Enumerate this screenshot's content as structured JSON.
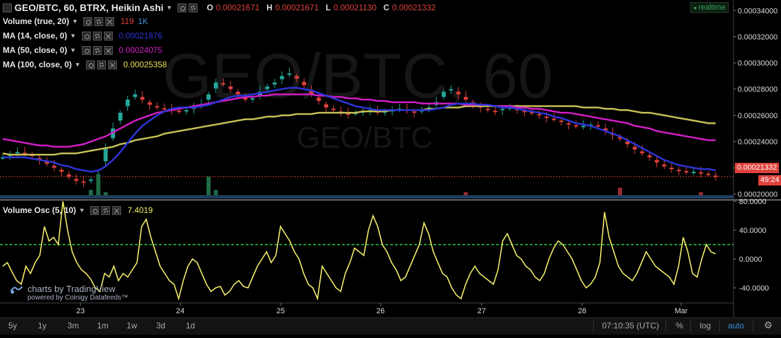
{
  "header": {
    "symbol_label": "GEO/BTC, 60, BTRX, Heikin Ashi",
    "ohlc": [
      {
        "k": "O",
        "v": "0.00021671"
      },
      {
        "k": "H",
        "v": "0.00021671"
      },
      {
        "k": "L",
        "v": "0.00021130"
      },
      {
        "k": "C",
        "v": "0.00021332"
      }
    ],
    "realtime_label": "realtime"
  },
  "watermark": {
    "big": "GEO/BTC, 60",
    "small": "GEO/BTC"
  },
  "indicators": [
    {
      "name": "Volume (true, 20)",
      "values": [
        {
          "text": "119",
          "color": "#e0413c"
        },
        {
          "text": "1K",
          "color": "#3a8fd6"
        }
      ]
    },
    {
      "name": "MA (14, close, 0)",
      "values": [
        {
          "text": "0.00021876",
          "color": "#2d35d8"
        }
      ]
    },
    {
      "name": "MA (50, close, 0)",
      "values": [
        {
          "text": "0.00024075",
          "color": "#d21dc6"
        }
      ]
    },
    {
      "name": "MA (100, close, 0)",
      "values": [
        {
          "text": "0.00025358",
          "color": "#e8e05a"
        }
      ]
    }
  ],
  "osc": {
    "name": "Volume Osc (5, 10)",
    "value": "7.4019",
    "value_color": "#f4ee6a"
  },
  "price_tags": {
    "last": "0.00021332",
    "countdown": "49:24"
  },
  "branding": {
    "main": "charts by TradingView",
    "sub": "powered by Coinigy Datafeeds™"
  },
  "toolbar": {
    "ranges": [
      "5y",
      "1y",
      "3m",
      "1m",
      "1w",
      "3d",
      "1d"
    ],
    "time": "07:10:35 (UTC)",
    "percent": "%",
    "log": "log",
    "auto": "auto"
  },
  "colors": {
    "up": "#26a69a",
    "down": "#e0413c",
    "ma14": "#2d35d8",
    "ma50": "#d21dc6",
    "ma100": "#c8c056",
    "osc_line": "#f4ee6a",
    "osc_zero": "#2ecc40",
    "price_line": "#e0413c"
  },
  "chart_data": [
    {
      "type": "candlestick",
      "title": "GEO/BTC, 60, BTRX, Heikin Ashi",
      "x_ticks": [
        "23",
        "24",
        "25",
        "26",
        "27",
        "28",
        "Mar"
      ],
      "y_ticks": [
        "0.00034000",
        "0.00032000",
        "0.00030000",
        "0.00028000",
        "0.00026000",
        "0.00024000",
        "0.00022000",
        "0.00020000"
      ],
      "ylim": [
        0.000196,
        0.000348
      ],
      "last_price": 0.00021332,
      "close_series": [
        0.000228,
        0.00023,
        0.000232,
        0.000231,
        0.000229,
        0.000226,
        0.000223,
        0.00022,
        0.000217,
        0.000213,
        0.00021,
        0.000209,
        0.000211,
        0.000215,
        0.000235,
        0.00025,
        0.000262,
        0.000272,
        0.000276,
        0.000272,
        0.000268,
        0.000266,
        0.000265,
        0.000264,
        0.000263,
        0.000264,
        0.000266,
        0.000268,
        0.000276,
        0.000285,
        0.000284,
        0.00028,
        0.000276,
        0.000272,
        0.000273,
        0.000278,
        0.000282,
        0.000285,
        0.00029,
        0.000292,
        0.000288,
        0.000283,
        0.000276,
        0.000271,
        0.000266,
        0.000264,
        0.000262,
        0.000261,
        0.000262,
        0.000263,
        0.000264,
        0.000262,
        0.000263,
        0.000264,
        0.000265,
        0.000264,
        0.000262,
        0.000264,
        0.000266,
        0.00027,
        0.000278,
        0.00028,
        0.000276,
        0.000272,
        0.000268,
        0.000266,
        0.000264,
        0.000263,
        0.000265,
        0.000266,
        0.000264,
        0.000263,
        0.000262,
        0.00026,
        0.000258,
        0.000257,
        0.000255,
        0.000253,
        0.000252,
        0.000252,
        0.000253,
        0.000252,
        0.000248,
        0.000245,
        0.000242,
        0.000238,
        0.000234,
        0.000231,
        0.000228,
        0.000224,
        0.000221,
        0.000219,
        0.000218,
        0.000217,
        0.000217,
        0.000216,
        0.000215,
        0.000213
      ],
      "ma14": [
        0.000228,
        0.000228,
        0.000228,
        0.000228,
        0.000227,
        0.000226,
        0.000225,
        0.000224,
        0.000222,
        0.000221,
        0.000219,
        0.000218,
        0.000217,
        0.000218,
        0.000221,
        0.000226,
        0.000232,
        0.000239,
        0.000246,
        0.000252,
        0.000256,
        0.00026,
        0.000263,
        0.000265,
        0.000266,
        0.000266,
        0.000266,
        0.000267,
        0.000268,
        0.00027,
        0.000272,
        0.000274,
        0.000275,
        0.000275,
        0.000276,
        0.000277,
        0.000278,
        0.000279,
        0.00028,
        0.000281,
        0.000281,
        0.00028,
        0.000279,
        0.000277,
        0.000275,
        0.000273,
        0.000271,
        0.000269,
        0.000267,
        0.000266,
        0.000265,
        0.000264,
        0.000264,
        0.000264,
        0.000264,
        0.000264,
        0.000264,
        0.000264,
        0.000264,
        0.000265,
        0.000266,
        0.000268,
        0.000269,
        0.000269,
        0.000269,
        0.000268,
        0.000268,
        0.000267,
        0.000266,
        0.000266,
        0.000265,
        0.000264,
        0.000263,
        0.000262,
        0.000261,
        0.000259,
        0.000258,
        0.000256,
        0.000254,
        0.000253,
        0.000252,
        0.00025,
        0.000248,
        0.000246,
        0.000244,
        0.000241,
        0.000238,
        0.000235,
        0.000232,
        0.000229,
        0.000226,
        0.000224,
        0.000222,
        0.000221,
        0.00022,
        0.000219,
        0.000219,
        0.000218
      ],
      "ma50": [
        0.000242,
        0.000241,
        0.00024,
        0.000239,
        0.000238,
        0.000237,
        0.000237,
        0.000236,
        0.000236,
        0.000236,
        0.000237,
        0.000238,
        0.00024,
        0.000242,
        0.000244,
        0.000247,
        0.00025,
        0.000253,
        0.000256,
        0.000258,
        0.00026,
        0.000262,
        0.000263,
        0.000264,
        0.000265,
        0.000266,
        0.000267,
        0.000268,
        0.000269,
        0.00027,
        0.000271,
        0.000272,
        0.000273,
        0.000274,
        0.000274,
        0.000275,
        0.000275,
        0.000276,
        0.000276,
        0.000276,
        0.000276,
        0.000276,
        0.000276,
        0.000275,
        0.000275,
        0.000274,
        0.000274,
        0.000273,
        0.000273,
        0.000272,
        0.000272,
        0.000271,
        0.000271,
        0.00027,
        0.00027,
        0.00027,
        0.00027,
        0.000269,
        0.000269,
        0.000269,
        0.000269,
        0.000269,
        0.000269,
        0.000268,
        0.000268,
        0.000268,
        0.000268,
        0.000267,
        0.000267,
        0.000267,
        0.000266,
        0.000266,
        0.000265,
        0.000265,
        0.000264,
        0.000263,
        0.000262,
        0.000262,
        0.000261,
        0.00026,
        0.000259,
        0.000258,
        0.000257,
        0.000256,
        0.000255,
        0.000254,
        0.000252,
        0.000251,
        0.00025,
        0.000248,
        0.000247,
        0.000246,
        0.000245,
        0.000244,
        0.000243,
        0.000242,
        0.000241,
        0.000241
      ],
      "ma100": [
        0.000231,
        0.00023,
        0.00023,
        0.00023,
        0.00023,
        0.00023,
        0.00023,
        0.00023,
        0.000231,
        0.000231,
        0.000231,
        0.000232,
        0.000233,
        0.000234,
        0.000235,
        0.000236,
        0.000238,
        0.000239,
        0.000241,
        0.000242,
        0.000243,
        0.000244,
        0.000246,
        0.000247,
        0.000248,
        0.000249,
        0.00025,
        0.000251,
        0.000252,
        0.000253,
        0.000254,
        0.000255,
        0.000256,
        0.000257,
        0.000257,
        0.000258,
        0.000259,
        0.000259,
        0.00026,
        0.00026,
        0.000261,
        0.000261,
        0.000261,
        0.000262,
        0.000262,
        0.000262,
        0.000262,
        0.000262,
        0.000262,
        0.000263,
        0.000263,
        0.000263,
        0.000263,
        0.000264,
        0.000264,
        0.000264,
        0.000264,
        0.000264,
        0.000265,
        0.000265,
        0.000266,
        0.000266,
        0.000266,
        0.000267,
        0.000267,
        0.000267,
        0.000267,
        0.000267,
        0.000267,
        0.000267,
        0.000267,
        0.000267,
        0.000267,
        0.000267,
        0.000267,
        0.000267,
        0.000267,
        0.000267,
        0.000267,
        0.000266,
        0.000266,
        0.000266,
        0.000265,
        0.000265,
        0.000264,
        0.000264,
        0.000263,
        0.000262,
        0.000262,
        0.000261,
        0.00026,
        0.000259,
        0.000258,
        0.000257,
        0.000256,
        0.000255,
        0.000254,
        0.000254
      ],
      "volume_spikes": [
        0,
        0,
        0,
        0,
        0,
        0,
        0,
        0,
        0,
        0,
        0,
        0,
        0.3,
        1,
        0.2,
        0,
        0,
        0,
        0,
        0,
        0,
        0,
        0,
        0,
        0,
        0,
        0,
        0,
        0.9,
        0.3,
        0,
        0,
        0,
        0,
        0,
        0,
        0,
        0,
        0,
        0,
        0,
        0,
        0,
        0,
        0,
        0,
        0,
        0,
        0,
        0,
        0,
        0,
        0,
        0,
        0,
        0,
        0,
        0,
        0,
        0,
        0,
        0,
        0,
        0.2,
        0,
        0,
        0,
        0,
        0,
        0,
        0,
        0,
        0,
        0,
        0,
        0,
        0,
        0,
        0,
        0,
        0,
        0,
        0,
        0,
        0.4,
        0,
        0,
        0,
        0,
        0,
        0,
        0,
        0,
        0,
        0,
        0.2
      ]
    },
    {
      "type": "line",
      "title": "Volume Osc (5, 10)",
      "y_ticks": [
        "80.0000",
        "40.0000",
        "0.0000",
        "-40.0000"
      ],
      "ylim": [
        -60,
        80
      ],
      "reference_line": 20,
      "values": [
        -10,
        -5,
        -18,
        -30,
        -35,
        -10,
        -20,
        -5,
        5,
        45,
        25,
        30,
        20,
        80,
        40,
        10,
        -5,
        -15,
        -20,
        -28,
        -40,
        -45,
        -20,
        -25,
        -10,
        -30,
        -20,
        -25,
        -15,
        -5,
        45,
        55,
        30,
        10,
        -10,
        -20,
        -30,
        -35,
        -55,
        -30,
        -10,
        0,
        -5,
        -20,
        -35,
        -45,
        -40,
        -38,
        -50,
        -45,
        -35,
        -30,
        -38,
        -40,
        -25,
        -10,
        0,
        10,
        -5,
        5,
        45,
        35,
        25,
        10,
        0,
        -20,
        -35,
        -40,
        -55,
        -10,
        -20,
        -30,
        -40,
        -45,
        -20,
        -5,
        15,
        10,
        5,
        40,
        60,
        45,
        20,
        10,
        -5,
        -15,
        -30,
        -25,
        -10,
        5,
        20,
        50,
        35,
        10,
        -5,
        -20,
        -25,
        -40,
        -50,
        -55,
        -35,
        -20,
        -10,
        -20,
        -25,
        -30,
        -35,
        -15,
        25,
        35,
        20,
        5,
        0,
        -10,
        -15,
        -25,
        -30,
        -20,
        0,
        15,
        25,
        20,
        10,
        0,
        -15,
        -30,
        -40,
        -35,
        -25,
        -5,
        65,
        30,
        10,
        -10,
        -20,
        -25,
        -30,
        -20,
        -5,
        10,
        0,
        -10,
        -15,
        -20,
        -25,
        -35,
        -10,
        30,
        10,
        -20,
        -25,
        0,
        20,
        10,
        7
      ]
    }
  ]
}
